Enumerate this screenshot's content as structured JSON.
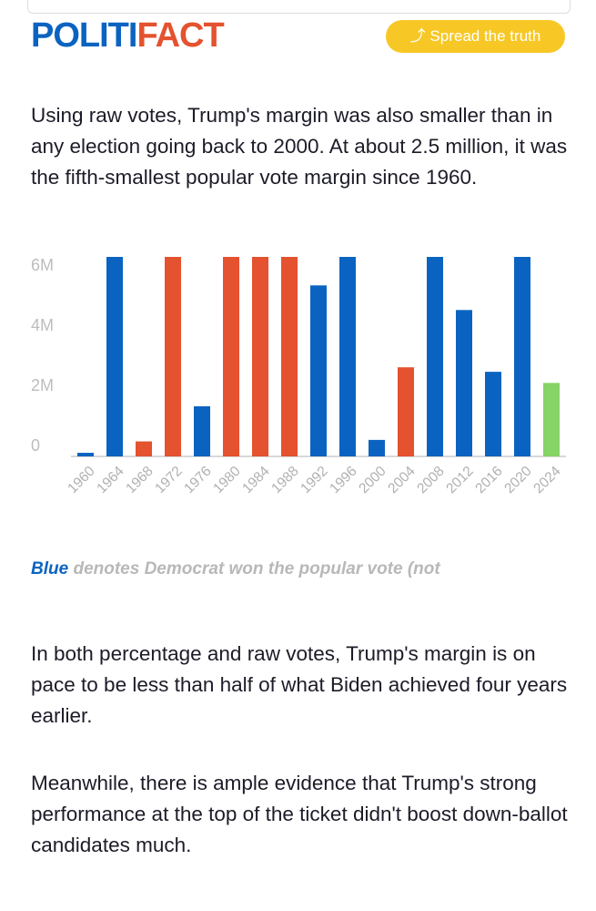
{
  "header": {
    "logo": [
      "POLITI",
      "FACT"
    ],
    "button": "Spread the truth"
  },
  "paragraphs": [
    "Using raw votes, Trump's margin was also smaller than in any election going back to 2000. At about 2.5 million, it was the fifth-smallest popular vote margin since 1960.",
    "In both percentage and raw votes, Trump's margin is on pace to be less than half of what Biden achieved four years earlier.",
    "Meanwhile, there is ample evidence that Trump's strong performance at the top of the ticket didn't boost down-ballot candidates much."
  ],
  "caption": [
    "Blue",
    " denotes Democrat won the popular vote (not"
  ],
  "chart_data": {
    "type": "bar",
    "categories": [
      "1960",
      "1964",
      "1968",
      "1972",
      "1976",
      "1980",
      "1984",
      "1988",
      "1992",
      "1996",
      "2000",
      "2004",
      "2008",
      "2012",
      "2016",
      "2020",
      "2024"
    ],
    "values": [
      120000,
      6650000,
      500000,
      6650000,
      1670000,
      6650000,
      6650000,
      6650000,
      5700000,
      6650000,
      550000,
      2970000,
      6650000,
      4880000,
      2820000,
      6650000,
      2450000
    ],
    "colors": [
      "#0b63c1",
      "#0b63c1",
      "#e4522f",
      "#e4522f",
      "#0b63c1",
      "#e4522f",
      "#e4522f",
      "#e4522f",
      "#0b63c1",
      "#0b63c1",
      "#0b63c1",
      "#e4522f",
      "#0b63c1",
      "#0b63c1",
      "#0b63c1",
      "#0b63c1",
      "#86d366"
    ],
    "ylim": [
      0,
      6650000
    ],
    "yticks": [
      {
        "value": 0,
        "label": "0"
      },
      {
        "value": 2000000,
        "label": "2M"
      },
      {
        "value": 4000000,
        "label": "4M"
      },
      {
        "value": 6000000,
        "label": "6M"
      }
    ]
  }
}
